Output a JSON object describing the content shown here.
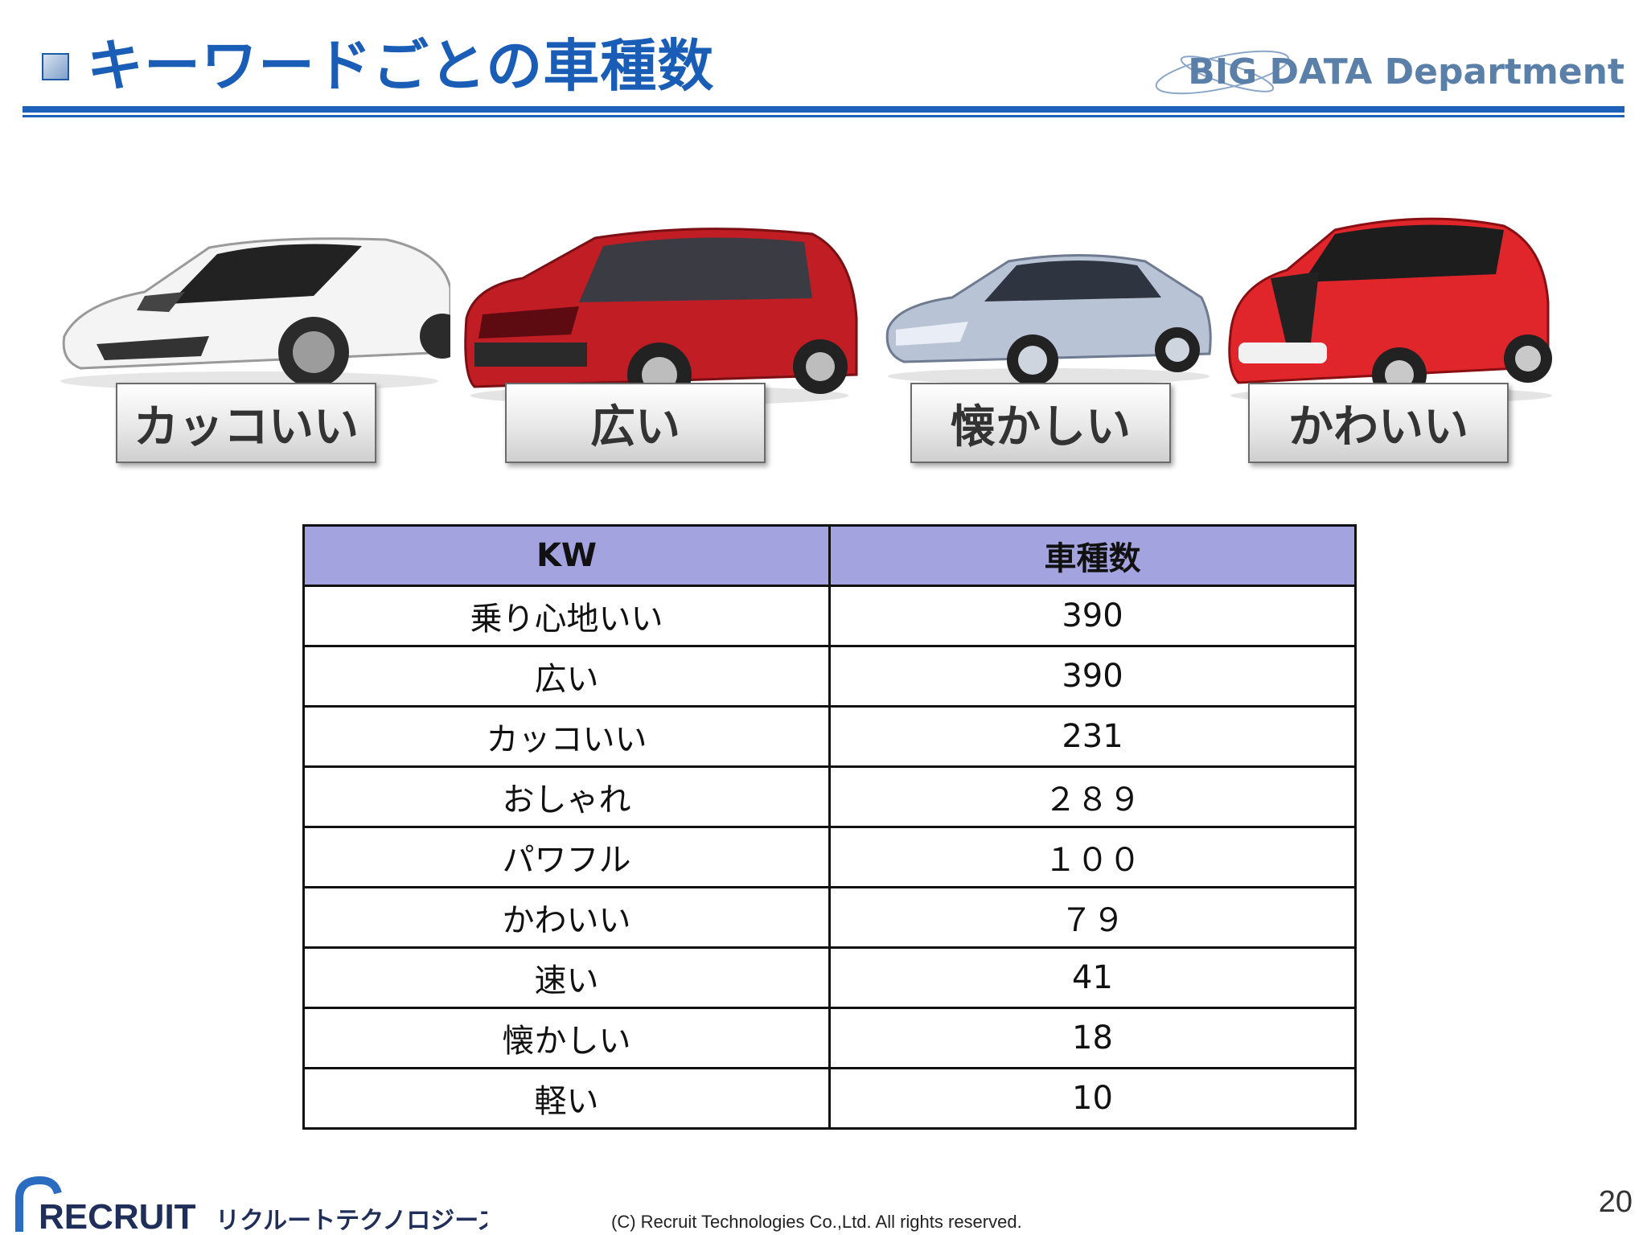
{
  "header": {
    "title": "キーワードごとの車種数",
    "department": "BIG DATA Department"
  },
  "cars": [
    {
      "label": "カッコいい",
      "color": "#f2f2f2"
    },
    {
      "label": "広い",
      "color": "#c01d25"
    },
    {
      "label": "懐かしい",
      "color": "#b9c3d6"
    },
    {
      "label": "かわいい",
      "color": "#e0262b"
    }
  ],
  "table": {
    "headers": [
      "KW",
      "車種数"
    ],
    "rows": [
      [
        "乗り心地いい",
        "390"
      ],
      [
        "広い",
        "390"
      ],
      [
        "カッコいい",
        "231"
      ],
      [
        "おしゃれ",
        "２８９"
      ],
      [
        "パワフル",
        "１００"
      ],
      [
        "かわいい",
        "７９"
      ],
      [
        "速い",
        "41"
      ],
      [
        "懐かしい",
        "18"
      ],
      [
        "軽い",
        "10"
      ]
    ],
    "header_color": "#a3a3e0"
  },
  "footer": {
    "company_logo": "RECRUIT",
    "company_kana": "リクルートテクノロジーズ",
    "copyright": "(C) Recruit Technologies Co.,Ltd. All rights reserved.",
    "page_number": "20"
  }
}
